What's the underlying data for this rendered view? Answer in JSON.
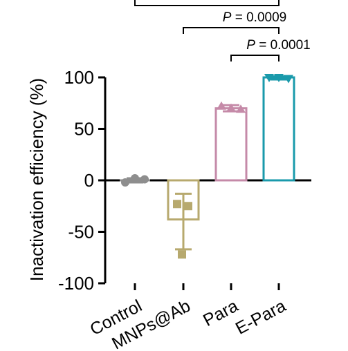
{
  "chart_data": {
    "type": "bar",
    "ylabel": "Inactivation efficiency (%)",
    "ylim": [
      -100,
      100
    ],
    "yticks": [
      "100",
      "50",
      "0",
      "-50",
      "-100"
    ],
    "categories": [
      "Control",
      "MNPs@Ab",
      "Para",
      "E-Para"
    ],
    "values": [
      0,
      -38,
      70,
      100
    ],
    "error_low": [
      -2,
      -67,
      67,
      98
    ],
    "error_high": [
      2,
      -13,
      73,
      101
    ],
    "points": [
      [
        -2,
        2,
        1
      ],
      [
        -72,
        -23,
        -25
      ],
      [
        72,
        70,
        69
      ],
      [
        100,
        100,
        99
      ]
    ],
    "colors": [
      "#8e8e8e",
      "#b7a96e",
      "#c58aa8",
      "#1a9aab"
    ],
    "point_shapes": [
      "circle",
      "square",
      "triangle-up",
      "triangle-down"
    ],
    "grid": false,
    "comparisons": [
      {
        "from": "MNPs@Ab",
        "to": "E-Para",
        "label": "P = 0.0009"
      },
      {
        "from": "Para",
        "to": "E-Para",
        "label": "P = 0.0001"
      }
    ]
  }
}
